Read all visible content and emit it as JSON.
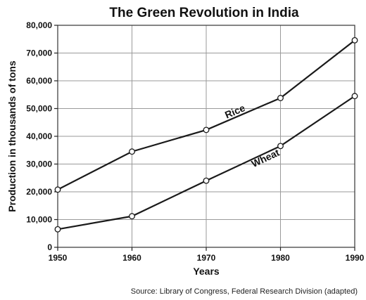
{
  "chart_data": {
    "type": "line",
    "title": "The Green Revolution in India",
    "xlabel": "Years",
    "ylabel": "Production in thousands of tons",
    "x": [
      1950,
      1960,
      1970,
      1980,
      1990
    ],
    "xlim": [
      1950,
      1990
    ],
    "ylim": [
      0,
      80000
    ],
    "x_ticks": [
      "1950",
      "1960",
      "1970",
      "1980",
      "1990"
    ],
    "y_ticks": [
      "0",
      "10,000",
      "20,000",
      "30,000",
      "40,000",
      "50,000",
      "60,000",
      "70,000",
      "80,000"
    ],
    "grid": true,
    "series": [
      {
        "name": "Rice",
        "values": [
          20800,
          34500,
          42300,
          53800,
          74600
        ]
      },
      {
        "name": "Wheat",
        "values": [
          6500,
          11200,
          24000,
          36500,
          54500
        ]
      }
    ],
    "source": "Source: Library of Congress, Federal Research Division (adapted)"
  }
}
